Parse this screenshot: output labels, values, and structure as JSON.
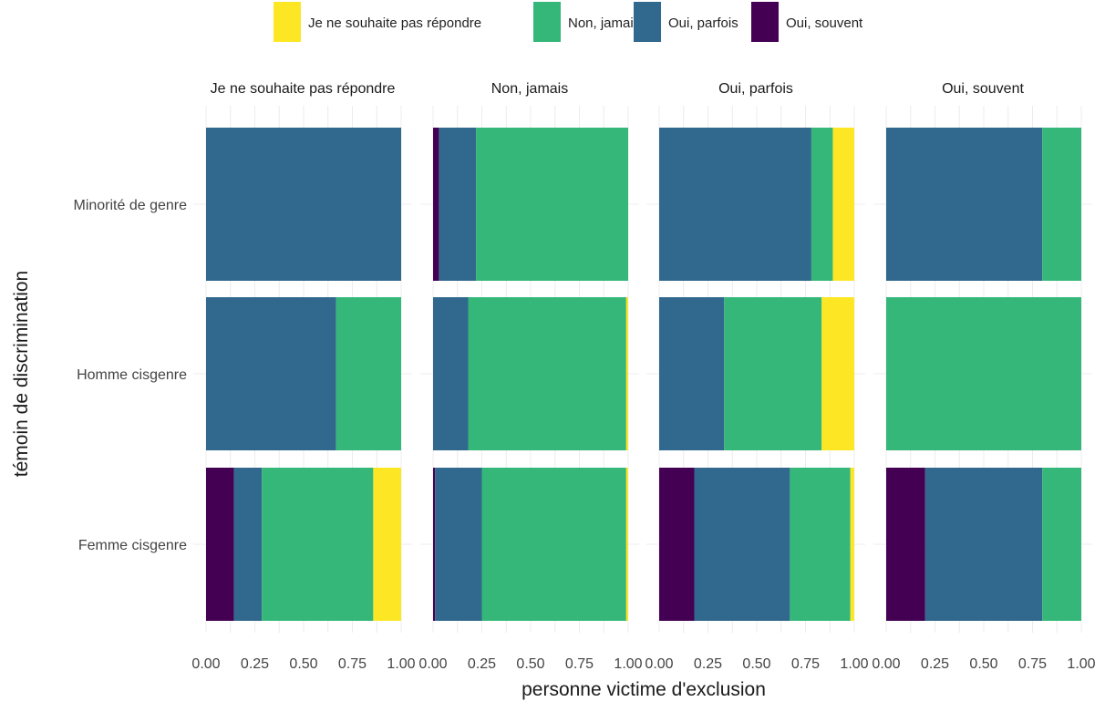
{
  "colors": {
    "Je ne souhaite pas répondre": "#fde725",
    "Non, jamais": "#35b779",
    "Oui, parfois": "#31688e",
    "Oui, souvent": "#440154"
  },
  "chart_data": {
    "type": "bar",
    "orientation": "horizontal",
    "stacked": "fill",
    "xlabel": "personne victime d'exclusion",
    "ylabel": "témoin de discrimination",
    "xlim": [
      0,
      1
    ],
    "x_ticks": [
      "0.00",
      "0.25",
      "0.50",
      "0.75",
      "1.00"
    ],
    "grid": true,
    "legend": {
      "position": "top",
      "entries": [
        "Je ne souhaite pas répondre",
        "Non, jamais",
        "Oui, parfois",
        "Oui, souvent"
      ]
    },
    "categories": [
      "Minorité de genre",
      "Homme cisgenre",
      "Femme cisgenre"
    ],
    "stack_order": [
      "Oui, souvent",
      "Oui, parfois",
      "Non, jamais",
      "Je ne souhaite pas répondre"
    ],
    "facets": [
      {
        "title": "Je ne souhaite pas répondre",
        "rows": [
          {
            "category": "Minorité de genre",
            "values": {
              "Oui, souvent": 0.0,
              "Oui, parfois": 1.0,
              "Non, jamais": 0.0,
              "Je ne souhaite pas répondre": 0.0
            }
          },
          {
            "category": "Homme cisgenre",
            "values": {
              "Oui, souvent": 0.0,
              "Oui, parfois": 0.667,
              "Non, jamais": 0.333,
              "Je ne souhaite pas répondre": 0.0
            }
          },
          {
            "category": "Femme cisgenre",
            "values": {
              "Oui, souvent": 0.143,
              "Oui, parfois": 0.143,
              "Non, jamais": 0.571,
              "Je ne souhaite pas répondre": 0.143
            }
          }
        ]
      },
      {
        "title": "Non, jamais",
        "rows": [
          {
            "category": "Minorité de genre",
            "values": {
              "Oui, souvent": 0.03,
              "Oui, parfois": 0.19,
              "Non, jamais": 0.78,
              "Je ne souhaite pas répondre": 0.0
            }
          },
          {
            "category": "Homme cisgenre",
            "values": {
              "Oui, souvent": 0.0,
              "Oui, parfois": 0.18,
              "Non, jamais": 0.81,
              "Je ne souhaite pas répondre": 0.01
            }
          },
          {
            "category": "Femme cisgenre",
            "values": {
              "Oui, souvent": 0.01,
              "Oui, parfois": 0.24,
              "Non, jamais": 0.74,
              "Je ne souhaite pas répondre": 0.01
            }
          }
        ]
      },
      {
        "title": "Oui, parfois",
        "rows": [
          {
            "category": "Minorité de genre",
            "values": {
              "Oui, souvent": 0.0,
              "Oui, parfois": 0.78,
              "Non, jamais": 0.11,
              "Je ne souhaite pas répondre": 0.11
            }
          },
          {
            "category": "Homme cisgenre",
            "values": {
              "Oui, souvent": 0.0,
              "Oui, parfois": 0.333,
              "Non, jamais": 0.5,
              "Je ne souhaite pas répondre": 0.167
            }
          },
          {
            "category": "Femme cisgenre",
            "values": {
              "Oui, souvent": 0.18,
              "Oui, parfois": 0.49,
              "Non, jamais": 0.31,
              "Je ne souhaite pas répondre": 0.02
            }
          }
        ]
      },
      {
        "title": "Oui, souvent",
        "rows": [
          {
            "category": "Minorité de genre",
            "values": {
              "Oui, souvent": 0.0,
              "Oui, parfois": 0.8,
              "Non, jamais": 0.2,
              "Je ne souhaite pas répondre": 0.0
            }
          },
          {
            "category": "Homme cisgenre",
            "values": {
              "Oui, souvent": 0.0,
              "Oui, parfois": 0.0,
              "Non, jamais": 1.0,
              "Je ne souhaite pas répondre": 0.0
            }
          },
          {
            "category": "Femme cisgenre",
            "values": {
              "Oui, souvent": 0.2,
              "Oui, parfois": 0.6,
              "Non, jamais": 0.2,
              "Je ne souhaite pas répondre": 0.0
            }
          }
        ]
      }
    ]
  }
}
